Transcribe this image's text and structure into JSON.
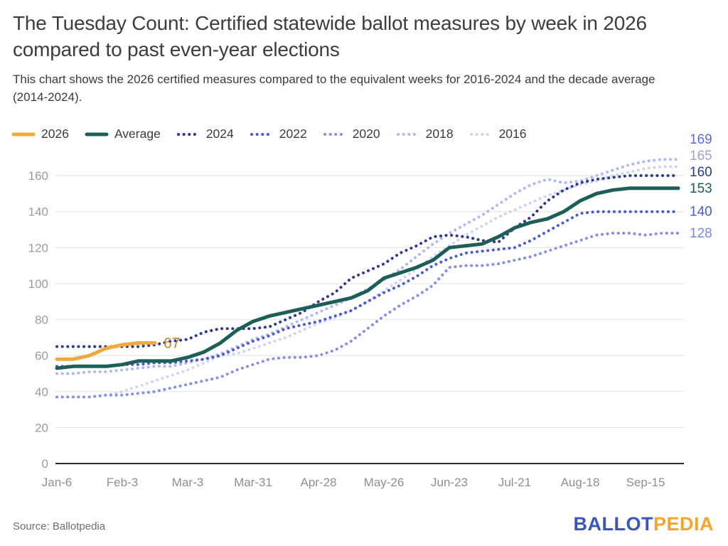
{
  "header": {
    "title": "The Tuesday Count: Certified statewide ballot measures by week in 2026 compared to past even-year elections",
    "subtitle": "This chart shows the 2026 certified measures compared to the equivalent weeks for 2016-2024 and the decade average (2014-2024)."
  },
  "footer": {
    "source": "Source: Ballotpedia",
    "logo_ballot": "BALLOT",
    "logo_pedia": "PEDIA",
    "logo_ballot_color": "#3C56B8",
    "logo_pedia_color": "#F5A52B"
  },
  "chart_data": {
    "type": "line",
    "title": "The Tuesday Count: Certified statewide ballot measures by week in 2026 compared to past even-year elections",
    "x_description": "weekly data points starting Jan-6, one point per week",
    "x_tick_labels": [
      "Jan-6",
      "Feb-3",
      "Mar-3",
      "Mar-31",
      "Apr-28",
      "May-26",
      "Jun-23",
      "Jul-21",
      "Aug-18",
      "Sep-15"
    ],
    "x_ticks_every_n_weeks": 4,
    "y_ticks": [
      0,
      20,
      40,
      60,
      80,
      100,
      120,
      140,
      160
    ],
    "ylim": [
      0,
      170
    ],
    "grid": "horizontal",
    "legend_position": "top-left",
    "annotation": {
      "text": "67",
      "color": "#C8821F",
      "series": "2026"
    },
    "axis_colors": {
      "tick_label": "#9b9b9b",
      "x_label": "#8f8f8f",
      "gridline": "#e7e7e7",
      "baseline": "#2b2b2b"
    },
    "series": [
      {
        "name": "2026",
        "style": "solid",
        "color": "#F2A93C",
        "label_color": "#C8821F",
        "values": [
          58,
          58,
          60,
          64,
          66,
          67,
          67
        ]
      },
      {
        "name": "Average",
        "style": "solid",
        "color": "#1D5F58",
        "label_color": "#1D5F58",
        "end_label": "153",
        "values": [
          53,
          54,
          54,
          54,
          55,
          57,
          57,
          57,
          59,
          62,
          67,
          74,
          79,
          82,
          84,
          86,
          88,
          90,
          92,
          96,
          103,
          106,
          109,
          113,
          120,
          121,
          122,
          126,
          131,
          134,
          136,
          140,
          146,
          150,
          152,
          153,
          153,
          153,
          153
        ]
      },
      {
        "name": "2024",
        "style": "dotted",
        "color": "#2B3A8F",
        "label_color": "#2B3A8F",
        "end_label": "160",
        "values": [
          65,
          65,
          65,
          65,
          65,
          65,
          66,
          68,
          69,
          73,
          75,
          75,
          75,
          76,
          80,
          84,
          90,
          95,
          103,
          107,
          111,
          117,
          121,
          126,
          127,
          126,
          124,
          123,
          131,
          137,
          146,
          152,
          156,
          158,
          159,
          160,
          160,
          160,
          160
        ]
      },
      {
        "name": "2022",
        "style": "dotted",
        "color": "#4A5BD0",
        "label_color": "#4A5BD0",
        "end_label": "140",
        "values": [
          54,
          54,
          54,
          54,
          55,
          55,
          56,
          56,
          57,
          58,
          60,
          64,
          68,
          71,
          75,
          77,
          79,
          82,
          85,
          90,
          95,
          99,
          104,
          110,
          114,
          117,
          118,
          119,
          120,
          124,
          129,
          134,
          139,
          140,
          140,
          140,
          140,
          140,
          140
        ]
      },
      {
        "name": "2020",
        "style": "dotted",
        "color": "#8490E6",
        "label_color": "#7B89E0",
        "end_label": "128",
        "values": [
          37,
          37,
          37,
          38,
          38,
          39,
          40,
          42,
          44,
          46,
          48,
          52,
          55,
          58,
          59,
          59,
          60,
          63,
          68,
          75,
          82,
          88,
          93,
          99,
          109,
          110,
          110,
          111,
          113,
          115,
          118,
          121,
          124,
          127,
          128,
          128,
          127,
          128,
          128
        ]
      },
      {
        "name": "2018",
        "style": "dotted",
        "color": "#AEB8F2",
        "label_color": "#5C6BD6",
        "end_label": "169",
        "values": [
          50,
          50,
          51,
          51,
          52,
          53,
          54,
          54,
          56,
          58,
          61,
          65,
          69,
          72,
          76,
          80,
          84,
          88,
          92,
          97,
          102,
          108,
          115,
          122,
          128,
          133,
          138,
          144,
          150,
          155,
          158,
          156,
          157,
          160,
          163,
          166,
          168,
          169,
          169
        ]
      },
      {
        "name": "2016",
        "style": "dotted",
        "color": "#CDD4F6",
        "label_color": "#9EA3C4",
        "end_label": "165",
        "values": [
          37,
          37,
          37,
          38,
          40,
          43,
          46,
          49,
          52,
          56,
          60,
          61,
          64,
          67,
          70,
          74,
          78,
          81,
          85,
          90,
          96,
          102,
          108,
          115,
          121,
          127,
          132,
          137,
          141,
          145,
          149,
          152,
          155,
          157,
          160,
          162,
          164,
          165,
          165
        ]
      }
    ]
  }
}
